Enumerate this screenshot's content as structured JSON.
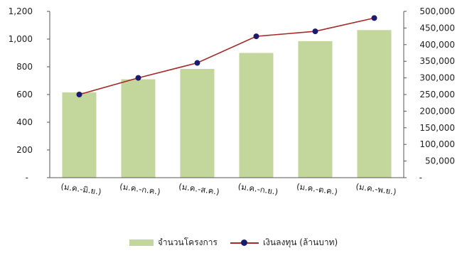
{
  "chart_data": {
    "type": "bar+line",
    "categories": [
      "(ม.ค.-มิ.ย.)",
      "(ม.ค.-ก.ค.)",
      "(ม.ค.-ส.ค.)",
      "(ม.ค.-ก.ย.)",
      "(ม.ค.-ต.ค.)",
      "(ม.ค.-พ.ย.)"
    ],
    "series": [
      {
        "name": "จำนวนโครงการ",
        "type": "bar",
        "axis": "left",
        "color": "#c3d69b",
        "values": [
          615,
          710,
          785,
          900,
          985,
          1065
        ]
      },
      {
        "name": "เงินลงทุน (ล้านบาท)",
        "type": "line",
        "axis": "right",
        "color": "#a52a2a",
        "marker_color": "#1a1a6e",
        "values": [
          250000,
          300000,
          345000,
          425000,
          440000,
          480000
        ]
      }
    ],
    "left_axis": {
      "min": 0,
      "max": 1200,
      "step": 200,
      "tick_labels": [
        "-",
        "200",
        "400",
        "600",
        "800",
        "1,000",
        "1,200"
      ]
    },
    "right_axis": {
      "min": 0,
      "max": 500000,
      "step": 50000,
      "tick_labels": [
        "-",
        "50,000",
        "100,000",
        "150,000",
        "200,000",
        "250,000",
        "300,000",
        "350,000",
        "400,000",
        "450,000",
        "500,000"
      ]
    },
    "legend_position": "bottom",
    "grid": false
  }
}
